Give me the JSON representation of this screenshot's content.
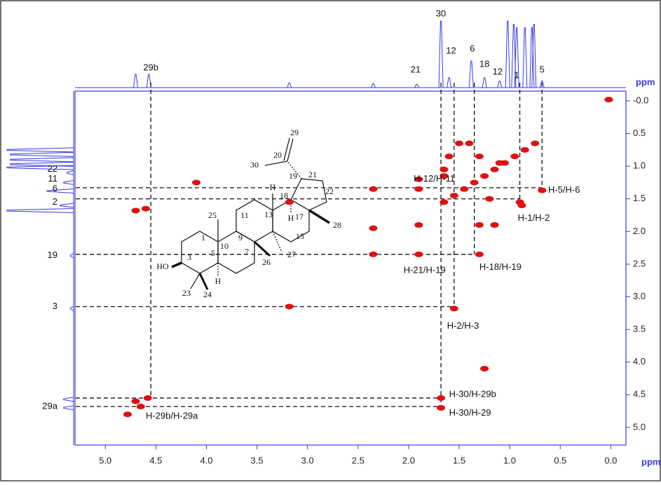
{
  "chart_data": {
    "type": "scatter",
    "xlabel": "ppm",
    "ylabel": "ppm",
    "xlim": [
      5.3,
      -0.15
    ],
    "ylim": [
      -0.15,
      5.27
    ],
    "xticks": [
      {
        "value": 5,
        "label": "5.0"
      },
      {
        "value": 4.5,
        "label": "4.5"
      },
      {
        "value": 4,
        "label": "4.0"
      },
      {
        "value": 3.5,
        "label": "3.5"
      },
      {
        "value": 3,
        "label": "3.0"
      },
      {
        "value": 2.5,
        "label": "2.5"
      },
      {
        "value": 2,
        "label": "2.0"
      },
      {
        "value": 1.5,
        "label": "1.5"
      },
      {
        "value": 1,
        "label": "1.0"
      },
      {
        "value": 0.5,
        "label": "0.5"
      },
      {
        "value": 0,
        "label": "0.0"
      }
    ],
    "yticks": [
      {
        "value": 0,
        "label": "-0.0"
      },
      {
        "value": 0.5,
        "label": "0.5"
      },
      {
        "value": 1,
        "label": "1.0"
      },
      {
        "value": 1.5,
        "label": "1.5"
      },
      {
        "value": 2,
        "label": "2.0"
      },
      {
        "value": 2.5,
        "label": "2.5"
      },
      {
        "value": 3,
        "label": "3.0"
      },
      {
        "value": 3.5,
        "label": "3.5"
      },
      {
        "value": 4,
        "label": "4.0"
      },
      {
        "value": 4.5,
        "label": "4.5"
      },
      {
        "value": 5,
        "label": "5.0"
      }
    ],
    "color": "#e01010",
    "x": [
      0.02,
      0.75,
      0.85,
      0.95,
      1.05,
      1.15,
      1.25,
      1.35,
      1.45,
      1.55,
      1.65,
      1.5,
      1.4,
      1.6,
      1.3,
      1.1,
      1.65,
      1.65,
      1.9,
      1.9,
      2.35,
      0.68,
      0.9,
      0.88,
      1.2,
      1.9,
      2.35,
      1.3,
      1.15,
      2.35,
      1.9,
      1.3,
      3.18,
      1.55,
      3.18,
      4.58,
      4.65,
      4.7,
      4.78,
      1.68,
      1.68,
      4.1,
      4.6,
      4.7,
      1.25
    ],
    "values": [
      -0.02,
      0.65,
      0.75,
      0.85,
      0.95,
      1.05,
      1.15,
      1.25,
      1.35,
      1.45,
      1.55,
      0.65,
      0.65,
      0.85,
      0.85,
      0.95,
      1.05,
      1.15,
      1.2,
      1.35,
      1.35,
      1.37,
      1.55,
      1.6,
      1.5,
      1.9,
      1.95,
      1.9,
      1.9,
      2.35,
      2.35,
      2.35,
      3.15,
      3.18,
      1.55,
      4.55,
      4.68,
      4.6,
      4.8,
      4.7,
      4.55,
      1.25,
      1.65,
      1.68,
      4.1
    ],
    "vertical_guides": [
      {
        "x": 4.55,
        "y": 4.55
      },
      {
        "x": 1.68,
        "y": 4.65
      },
      {
        "x": 1.55,
        "y": 3.2
      },
      {
        "x": 1.35,
        "y": 2.35
      },
      {
        "x": 0.9,
        "y": 1.55
      },
      {
        "x": 0.68,
        "y": 1.37
      }
    ],
    "horizontal_guides": [
      {
        "y": 1.33,
        "x": 0.68
      },
      {
        "y": 1.5,
        "x": 0.9
      },
      {
        "y": 2.35,
        "x": 1.35
      },
      {
        "y": 3.15,
        "x": 1.55
      },
      {
        "y": 4.55,
        "x": 1.68
      },
      {
        "y": 4.68,
        "x": 1.68
      }
    ],
    "top_projection": {
      "x": [
        4.7,
        4.57,
        3.18,
        2.35,
        1.92,
        1.68,
        1.6,
        1.38,
        1.25,
        1.1,
        1.02,
        0.96,
        0.93,
        0.85,
        0.78,
        0.76,
        0.68
      ],
      "values": [
        0.2,
        0.2,
        0.07,
        0.06,
        0.05,
        1.0,
        0.15,
        0.4,
        0.15,
        0.1,
        1.0,
        0.95,
        0.9,
        0.9,
        0.9,
        0.95,
        0.1
      ]
    },
    "left_projection": {
      "y": [
        0.75,
        0.82,
        0.9,
        0.97,
        1.02,
        1.1,
        1.25,
        1.38,
        1.6,
        1.68,
        2.37,
        3.18,
        4.57,
        4.7
      ],
      "values": [
        1.0,
        0.95,
        0.95,
        0.95,
        1.0,
        0.1,
        0.15,
        0.4,
        0.2,
        1.0,
        0.05,
        0.05,
        0.15,
        0.15
      ]
    },
    "top_peak_labels": [
      {
        "text": "30",
        "x": 1.68
      },
      {
        "text": "12",
        "x": 1.58
      },
      {
        "text": "6",
        "x": 1.37
      },
      {
        "text": "18",
        "x": 1.25
      },
      {
        "text": "12",
        "x": 1.12
      },
      {
        "text": "1",
        "x": 0.93
      },
      {
        "text": "5",
        "x": 0.68
      },
      {
        "text": "21",
        "x": 1.93
      },
      {
        "text": "29b",
        "x": 4.55
      }
    ],
    "left_peak_labels": [
      {
        "text": "22",
        "y": 1.05
      },
      {
        "text": "11",
        "y": 1.2
      },
      {
        "text": "6",
        "y": 1.35
      },
      {
        "text": "2",
        "y": 1.55
      },
      {
        "text": "19",
        "y": 2.37
      },
      {
        "text": "3",
        "y": 3.15
      },
      {
        "text": "29a",
        "y": 4.68
      }
    ],
    "correlation_labels": [
      {
        "text": "H-12/H-11",
        "x": 1.95,
        "y": 1.2
      },
      {
        "text": "H-5/H-6",
        "x": 0.62,
        "y": 1.37
      },
      {
        "text": "H-1/H-2",
        "x": 0.92,
        "y": 1.8
      },
      {
        "text": "H-18/H-19",
        "x": 1.3,
        "y": 2.55
      },
      {
        "text": "H-21/H-19",
        "x": 2.05,
        "y": 2.6
      },
      {
        "text": "H-2/H-3",
        "x": 1.62,
        "y": 3.45
      },
      {
        "text": "H-30/H-29b",
        "x": 1.6,
        "y": 4.5
      },
      {
        "text": "H-30/H-29",
        "x": 1.6,
        "y": 4.78
      },
      {
        "text": "H-29b/H-29a",
        "x": 4.6,
        "y": 4.83
      }
    ],
    "structure_labels": [
      "29",
      "20",
      "30",
      "19",
      "21",
      "22",
      "H",
      "18",
      "13",
      "17",
      "28",
      "H",
      "15",
      "25",
      "11",
      "9",
      "10",
      "1",
      "5",
      "3",
      "HO",
      "7",
      "26",
      "27",
      "H",
      "23",
      "24"
    ]
  }
}
